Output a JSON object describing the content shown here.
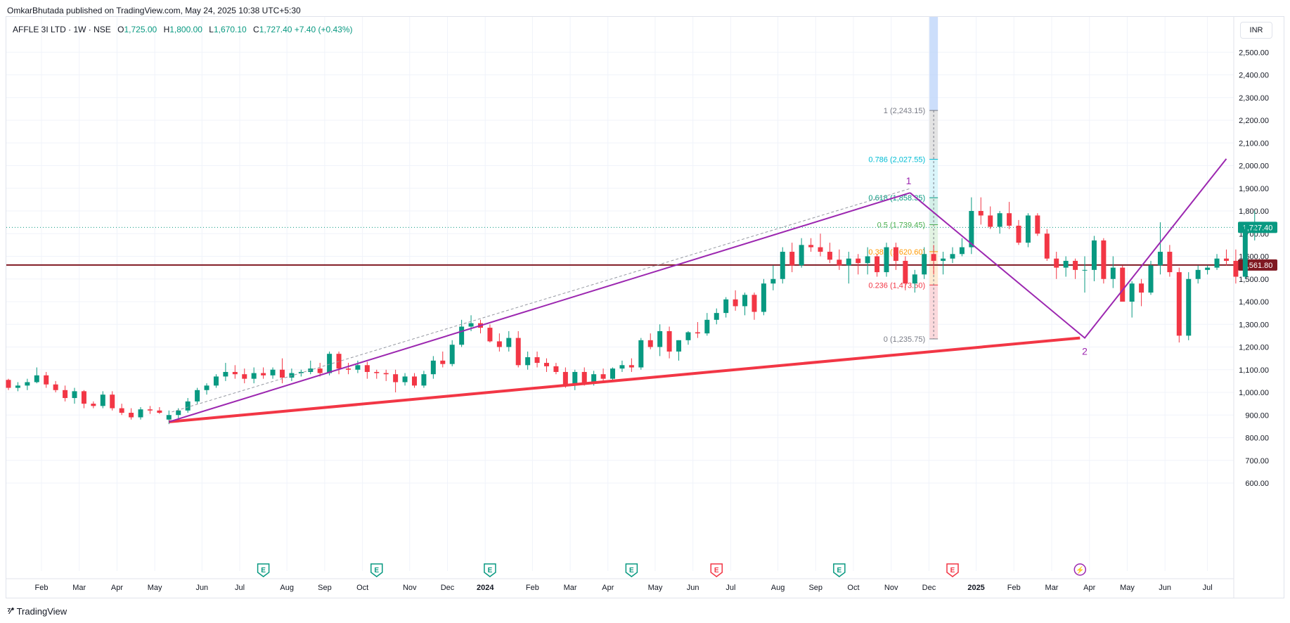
{
  "header": {
    "publisher_text": "OmkarBhutada published on TradingView.com, May 24, 2025 10:38 UTC+5:30"
  },
  "legend": {
    "title": "AFFLE 3I LTD · 1W · NSE",
    "open_label": "O",
    "open": "1,725.00",
    "high_label": "H",
    "high": "1,800.00",
    "low_label": "L",
    "low": "1,670.10",
    "close_label": "C",
    "close": "1,727.40",
    "change": "+7.40 (+0.43%)"
  },
  "currency": "INR",
  "footer": {
    "brand": "TradingView"
  },
  "colors": {
    "up": "#089981",
    "down": "#f23645",
    "support": "#f23645",
    "pattern": "#9c27b0",
    "hline": "#801922"
  },
  "chart_data": {
    "type": "candlestick",
    "symbol": "AFFLE 3I LTD",
    "interval": "1W",
    "exchange": "NSE",
    "ylim": [
      560,
      2580
    ],
    "y_ticks": [
      600,
      700,
      800,
      900,
      1000,
      1100,
      1200,
      1300,
      1400,
      1500,
      1600,
      1700,
      1800,
      1900,
      2000,
      2100,
      2200,
      2300,
      2400,
      2500
    ],
    "y_tick_labels": [
      "600.00",
      "700.00",
      "800.00",
      "900.00",
      "1,000.00",
      "1,100.00",
      "1,200.00",
      "1,300.00",
      "1,400.00",
      "1,500.00",
      "1,600.00",
      "1,700.00",
      "1,800.00",
      "1,900.00",
      "2,000.00",
      "2,100.00",
      "2,200.00",
      "2,300.00",
      "2,400.00",
      "2,500.00"
    ],
    "x_labels": [
      {
        "t": 3.5,
        "label": "Feb"
      },
      {
        "t": 7.5,
        "label": "Mar"
      },
      {
        "t": 11.5,
        "label": "Apr"
      },
      {
        "t": 15.5,
        "label": "May"
      },
      {
        "t": 20.5,
        "label": "Jun"
      },
      {
        "t": 24.5,
        "label": "Jul"
      },
      {
        "t": 29.5,
        "label": "Aug"
      },
      {
        "t": 33.5,
        "label": "Sep"
      },
      {
        "t": 37.5,
        "label": "Oct"
      },
      {
        "t": 42.5,
        "label": "Nov"
      },
      {
        "t": 46.5,
        "label": "Dec"
      },
      {
        "t": 50.5,
        "label": "2024",
        "bold": true
      },
      {
        "t": 55.5,
        "label": "Feb"
      },
      {
        "t": 59.5,
        "label": "Mar"
      },
      {
        "t": 63.5,
        "label": "Apr"
      },
      {
        "t": 68.5,
        "label": "May"
      },
      {
        "t": 72.5,
        "label": "Jun"
      },
      {
        "t": 76.5,
        "label": "Jul"
      },
      {
        "t": 81.5,
        "label": "Aug"
      },
      {
        "t": 85.5,
        "label": "Sep"
      },
      {
        "t": 89.5,
        "label": "Oct"
      },
      {
        "t": 93.5,
        "label": "Nov"
      },
      {
        "t": 97.5,
        "label": "Dec"
      },
      {
        "t": 102.5,
        "label": "2025",
        "bold": true
      },
      {
        "t": 106.5,
        "label": "Feb"
      },
      {
        "t": 110.5,
        "label": "Mar"
      },
      {
        "t": 114.5,
        "label": "Apr"
      },
      {
        "t": 118.5,
        "label": "May"
      },
      {
        "t": 122.5,
        "label": "Jun"
      },
      {
        "t": 127,
        "label": "Jul"
      }
    ],
    "candles": [
      [
        1055,
        1060,
        1010,
        1020
      ],
      [
        1020,
        1045,
        1005,
        1030
      ],
      [
        1030,
        1060,
        1010,
        1045
      ],
      [
        1045,
        1110,
        1040,
        1075
      ],
      [
        1075,
        1090,
        1020,
        1035
      ],
      [
        1035,
        1050,
        1000,
        1010
      ],
      [
        1010,
        1030,
        960,
        975
      ],
      [
        975,
        1020,
        950,
        1005
      ],
      [
        1005,
        1010,
        930,
        950
      ],
      [
        950,
        960,
        930,
        940
      ],
      [
        940,
        1005,
        930,
        990
      ],
      [
        990,
        1005,
        920,
        930
      ],
      [
        930,
        950,
        900,
        910
      ],
      [
        910,
        930,
        880,
        890
      ],
      [
        890,
        935,
        880,
        925
      ],
      [
        925,
        940,
        905,
        920
      ],
      [
        920,
        935,
        905,
        910
      ],
      [
        880,
        920,
        860,
        900
      ],
      [
        900,
        930,
        870,
        920
      ],
      [
        920,
        975,
        910,
        960
      ],
      [
        960,
        1020,
        950,
        1010
      ],
      [
        1010,
        1040,
        990,
        1030
      ],
      [
        1030,
        1080,
        1020,
        1070
      ],
      [
        1070,
        1130,
        1050,
        1090
      ],
      [
        1090,
        1120,
        1060,
        1080
      ],
      [
        1080,
        1105,
        1040,
        1060
      ],
      [
        1060,
        1110,
        1040,
        1085
      ],
      [
        1085,
        1110,
        1060,
        1075
      ],
      [
        1075,
        1110,
        1060,
        1100
      ],
      [
        1100,
        1150,
        1040,
        1065
      ],
      [
        1065,
        1105,
        1050,
        1085
      ],
      [
        1085,
        1100,
        1070,
        1090
      ],
      [
        1090,
        1140,
        1080,
        1105
      ],
      [
        1105,
        1130,
        1070,
        1085
      ],
      [
        1085,
        1180,
        1075,
        1170
      ],
      [
        1170,
        1180,
        1080,
        1105
      ],
      [
        1105,
        1130,
        1080,
        1100
      ],
      [
        1100,
        1140,
        1085,
        1120
      ],
      [
        1120,
        1135,
        1060,
        1090
      ],
      [
        1090,
        1100,
        1060,
        1085
      ],
      [
        1085,
        1100,
        1050,
        1080
      ],
      [
        1080,
        1100,
        1000,
        1045
      ],
      [
        1045,
        1085,
        1030,
        1070
      ],
      [
        1070,
        1085,
        1020,
        1030
      ],
      [
        1030,
        1095,
        1020,
        1080
      ],
      [
        1080,
        1160,
        1060,
        1140
      ],
      [
        1140,
        1180,
        1110,
        1125
      ],
      [
        1125,
        1230,
        1115,
        1210
      ],
      [
        1210,
        1320,
        1200,
        1290
      ],
      [
        1290,
        1340,
        1270,
        1305
      ],
      [
        1305,
        1320,
        1260,
        1285
      ],
      [
        1285,
        1300,
        1220,
        1225
      ],
      [
        1225,
        1260,
        1180,
        1200
      ],
      [
        1200,
        1270,
        1180,
        1240
      ],
      [
        1240,
        1270,
        1110,
        1120
      ],
      [
        1120,
        1180,
        1100,
        1155
      ],
      [
        1155,
        1180,
        1110,
        1130
      ],
      [
        1130,
        1150,
        1090,
        1115
      ],
      [
        1115,
        1130,
        1080,
        1090
      ],
      [
        1090,
        1110,
        1020,
        1030
      ],
      [
        1030,
        1100,
        1010,
        1090
      ],
      [
        1090,
        1110,
        1030,
        1040
      ],
      [
        1040,
        1095,
        1030,
        1080
      ],
      [
        1080,
        1105,
        1050,
        1060
      ],
      [
        1060,
        1110,
        1050,
        1105
      ],
      [
        1105,
        1140,
        1090,
        1120
      ],
      [
        1120,
        1150,
        1090,
        1110
      ],
      [
        1110,
        1240,
        1100,
        1230
      ],
      [
        1230,
        1260,
        1190,
        1200
      ],
      [
        1200,
        1300,
        1160,
        1270
      ],
      [
        1270,
        1290,
        1150,
        1180
      ],
      [
        1180,
        1230,
        1140,
        1230
      ],
      [
        1230,
        1270,
        1210,
        1265
      ],
      [
        1265,
        1310,
        1240,
        1260
      ],
      [
        1260,
        1350,
        1250,
        1320
      ],
      [
        1320,
        1370,
        1300,
        1350
      ],
      [
        1350,
        1420,
        1330,
        1410
      ],
      [
        1410,
        1450,
        1360,
        1380
      ],
      [
        1380,
        1440,
        1340,
        1430
      ],
      [
        1430,
        1440,
        1320,
        1355
      ],
      [
        1355,
        1500,
        1340,
        1480
      ],
      [
        1480,
        1560,
        1450,
        1500
      ],
      [
        1500,
        1640,
        1480,
        1620
      ],
      [
        1620,
        1660,
        1530,
        1560
      ],
      [
        1560,
        1680,
        1550,
        1650
      ],
      [
        1650,
        1680,
        1620,
        1640
      ],
      [
        1640,
        1700,
        1600,
        1620
      ],
      [
        1620,
        1660,
        1570,
        1585
      ],
      [
        1585,
        1630,
        1540,
        1560
      ],
      [
        1560,
        1620,
        1480,
        1590
      ],
      [
        1590,
        1610,
        1520,
        1570
      ],
      [
        1570,
        1640,
        1520,
        1600
      ],
      [
        1600,
        1610,
        1510,
        1530
      ],
      [
        1530,
        1660,
        1510,
        1640
      ],
      [
        1640,
        1660,
        1540,
        1580
      ],
      [
        1580,
        1600,
        1450,
        1480
      ],
      [
        1480,
        1540,
        1440,
        1520
      ],
      [
        1520,
        1640,
        1500,
        1610
      ],
      [
        1610,
        1650,
        1520,
        1580
      ],
      [
        1580,
        1620,
        1520,
        1590
      ],
      [
        1590,
        1640,
        1570,
        1610
      ],
      [
        1610,
        1680,
        1600,
        1640
      ],
      [
        1640,
        1860,
        1610,
        1800
      ],
      [
        1800,
        1860,
        1740,
        1780
      ],
      [
        1780,
        1820,
        1720,
        1730
      ],
      [
        1730,
        1800,
        1700,
        1790
      ],
      [
        1790,
        1840,
        1720,
        1735
      ],
      [
        1735,
        1760,
        1650,
        1660
      ],
      [
        1660,
        1790,
        1640,
        1780
      ],
      [
        1780,
        1790,
        1690,
        1700
      ],
      [
        1700,
        1720,
        1580,
        1590
      ],
      [
        1590,
        1620,
        1500,
        1550
      ],
      [
        1550,
        1600,
        1510,
        1580
      ],
      [
        1580,
        1590,
        1500,
        1540
      ],
      [
        1540,
        1600,
        1440,
        1540
      ],
      [
        1540,
        1690,
        1490,
        1670
      ],
      [
        1670,
        1680,
        1480,
        1500
      ],
      [
        1500,
        1600,
        1460,
        1550
      ],
      [
        1550,
        1560,
        1400,
        1400
      ],
      [
        1400,
        1490,
        1330,
        1480
      ],
      [
        1480,
        1500,
        1380,
        1440
      ],
      [
        1440,
        1580,
        1430,
        1560
      ],
      [
        1560,
        1750,
        1520,
        1620
      ],
      [
        1620,
        1650,
        1510,
        1530
      ],
      [
        1530,
        1550,
        1220,
        1250
      ],
      [
        1250,
        1530,
        1230,
        1500
      ],
      [
        1500,
        1560,
        1480,
        1540
      ],
      [
        1540,
        1560,
        1520,
        1550
      ],
      [
        1550,
        1610,
        1540,
        1590
      ],
      [
        1590,
        1630,
        1560,
        1580
      ],
      [
        1580,
        1630,
        1480,
        1510
      ],
      [
        1510,
        1750,
        1500,
        1720
      ],
      [
        1725,
        1800,
        1670,
        1727.4
      ]
    ],
    "horizontal_lines": [
      {
        "price": 1561.8,
        "label": "1,561.80",
        "color": "#801922"
      },
      {
        "price": 1727.4,
        "label": "1,727.40",
        "color": "#089981",
        "style": "dotted"
      }
    ],
    "fibonacci": [
      {
        "level": "1",
        "price": 2243.15,
        "label": "1 (2,243.15)",
        "color": "#787b86"
      },
      {
        "level": "0.786",
        "price": 2027.55,
        "label": "0.786 (2,027.55)",
        "color": "#00bcd4"
      },
      {
        "level": "0.618",
        "price": 1858.35,
        "label": "0.618 (1,858.35)",
        "color": "#089981"
      },
      {
        "level": "0.5",
        "price": 1739.45,
        "label": "0.5 (1,739.45)",
        "color": "#4caf50"
      },
      {
        "level": "0.382",
        "price": 1620.6,
        "label": "0.382 (1,620.60)",
        "color": "#ff9800"
      },
      {
        "level": "0.236",
        "price": 1473.5,
        "label": "0.236 (1,473.50)",
        "color": "#f23645"
      },
      {
        "level": "0",
        "price": 1235.75,
        "label": "0 (1,235.75)",
        "color": "#787b86"
      }
    ],
    "support_line": {
      "from": [
        17,
        870
      ],
      "to": [
        113.5,
        1240
      ]
    },
    "rising_line": {
      "from": [
        17,
        870
      ],
      "to": [
        95.5,
        1880
      ]
    },
    "v_pattern": {
      "points": [
        [
          95.5,
          1880
        ],
        [
          114,
          1240
        ],
        [
          129,
          2030
        ]
      ],
      "labels": [
        "1",
        "2"
      ]
    },
    "earnings_markers": [
      {
        "t": 27,
        "type": "E",
        "color": "#089981"
      },
      {
        "t": 39,
        "type": "E",
        "color": "#089981"
      },
      {
        "t": 51,
        "type": "E",
        "color": "#089981"
      },
      {
        "t": 66,
        "type": "E",
        "color": "#089981"
      },
      {
        "t": 75,
        "type": "E",
        "color": "#f23645"
      },
      {
        "t": 88,
        "type": "E",
        "color": "#089981"
      },
      {
        "t": 100,
        "type": "E",
        "color": "#f23645"
      },
      {
        "t": 113.5,
        "type": "bolt",
        "color": "#9c27b0"
      }
    ]
  }
}
